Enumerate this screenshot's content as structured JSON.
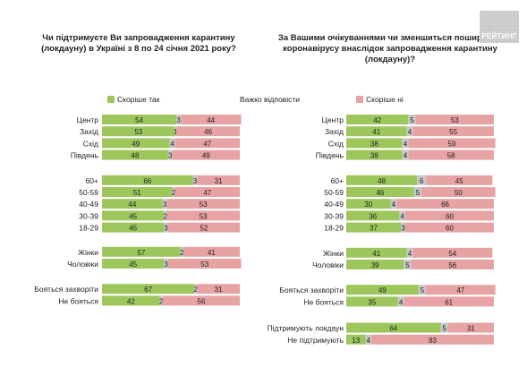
{
  "logo": {
    "text": "РЕЙТИНГ"
  },
  "colors": {
    "yes": "#9dc75c",
    "hard": "#c8c8c8",
    "no": "#e7a3a3"
  },
  "chart_data": [
    {
      "type": "bar",
      "stacked": true,
      "orientation": "horizontal",
      "title": "Чи підтримуєте Ви запровадження карантину (локдауну)  в Україні з 8 по 24 січня 2021 року?",
      "legend": [
        "Скоріше так",
        "Важко відповісти"
      ],
      "legend_placement": "top",
      "xlim": [
        0,
        100
      ],
      "groups": [
        {
          "rows": [
            {
              "label": "Центр",
              "values": [
                54,
                3,
                44
              ]
            },
            {
              "label": "Захід",
              "values": [
                53,
                1,
                46
              ]
            },
            {
              "label": "Схід",
              "values": [
                49,
                4,
                47
              ]
            },
            {
              "label": "Південь",
              "values": [
                48,
                3,
                49
              ]
            }
          ]
        },
        {
          "rows": [
            {
              "label": "60+",
              "values": [
                66,
                3,
                31
              ]
            },
            {
              "label": "50-59",
              "values": [
                51,
                2,
                47
              ]
            },
            {
              "label": "40-49",
              "values": [
                44,
                3,
                53
              ]
            },
            {
              "label": "30-39",
              "values": [
                45,
                2,
                53
              ]
            },
            {
              "label": "18-29",
              "values": [
                45,
                3,
                52
              ]
            }
          ]
        },
        {
          "rows": [
            {
              "label": "Жінки",
              "values": [
                57,
                2,
                41
              ]
            },
            {
              "label": "Чоловіки",
              "values": [
                45,
                3,
                53
              ]
            }
          ]
        },
        {
          "rows": [
            {
              "label": "Бояться захворіти",
              "values": [
                67,
                2,
                31
              ]
            },
            {
              "label": "Не бояться",
              "values": [
                42,
                2,
                56
              ]
            }
          ]
        }
      ]
    },
    {
      "type": "bar",
      "stacked": true,
      "orientation": "horizontal",
      "title": "За Вашими очікуваннями чи зменшиться поширення коронавірусу внаслідок запровадження карантину (локдауну)?",
      "legend": [
        "Скоріше ні"
      ],
      "legend_placement": "top",
      "xlim": [
        0,
        100
      ],
      "groups": [
        {
          "rows": [
            {
              "label": "Центр",
              "values": [
                42,
                5,
                53
              ]
            },
            {
              "label": "Захід",
              "values": [
                41,
                4,
                55
              ]
            },
            {
              "label": "Схід",
              "values": [
                38,
                4,
                59
              ]
            },
            {
              "label": "Південь",
              "values": [
                38,
                4,
                58
              ]
            }
          ]
        },
        {
          "rows": [
            {
              "label": "60+",
              "values": [
                48,
                6,
                45
              ]
            },
            {
              "label": "50-59",
              "values": [
                46,
                5,
                50
              ]
            },
            {
              "label": "40-49",
              "values": [
                30,
                4,
                66
              ]
            },
            {
              "label": "30-39",
              "values": [
                36,
                4,
                60
              ]
            },
            {
              "label": "18-29",
              "values": [
                37,
                3,
                60
              ]
            }
          ]
        },
        {
          "rows": [
            {
              "label": "Жінки",
              "values": [
                41,
                4,
                54
              ]
            },
            {
              "label": "Чоловіки",
              "values": [
                39,
                5,
                56
              ]
            }
          ]
        },
        {
          "rows": [
            {
              "label": "Бояться захворіти",
              "values": [
                49,
                5,
                47
              ]
            },
            {
              "label": "Не бояться",
              "values": [
                35,
                4,
                61
              ]
            }
          ]
        },
        {
          "rows": [
            {
              "label": "Підтримують локдаун",
              "values": [
                64,
                5,
                31
              ]
            },
            {
              "label": "Не підтримують",
              "values": [
                13,
                4,
                83
              ]
            }
          ]
        }
      ]
    }
  ]
}
